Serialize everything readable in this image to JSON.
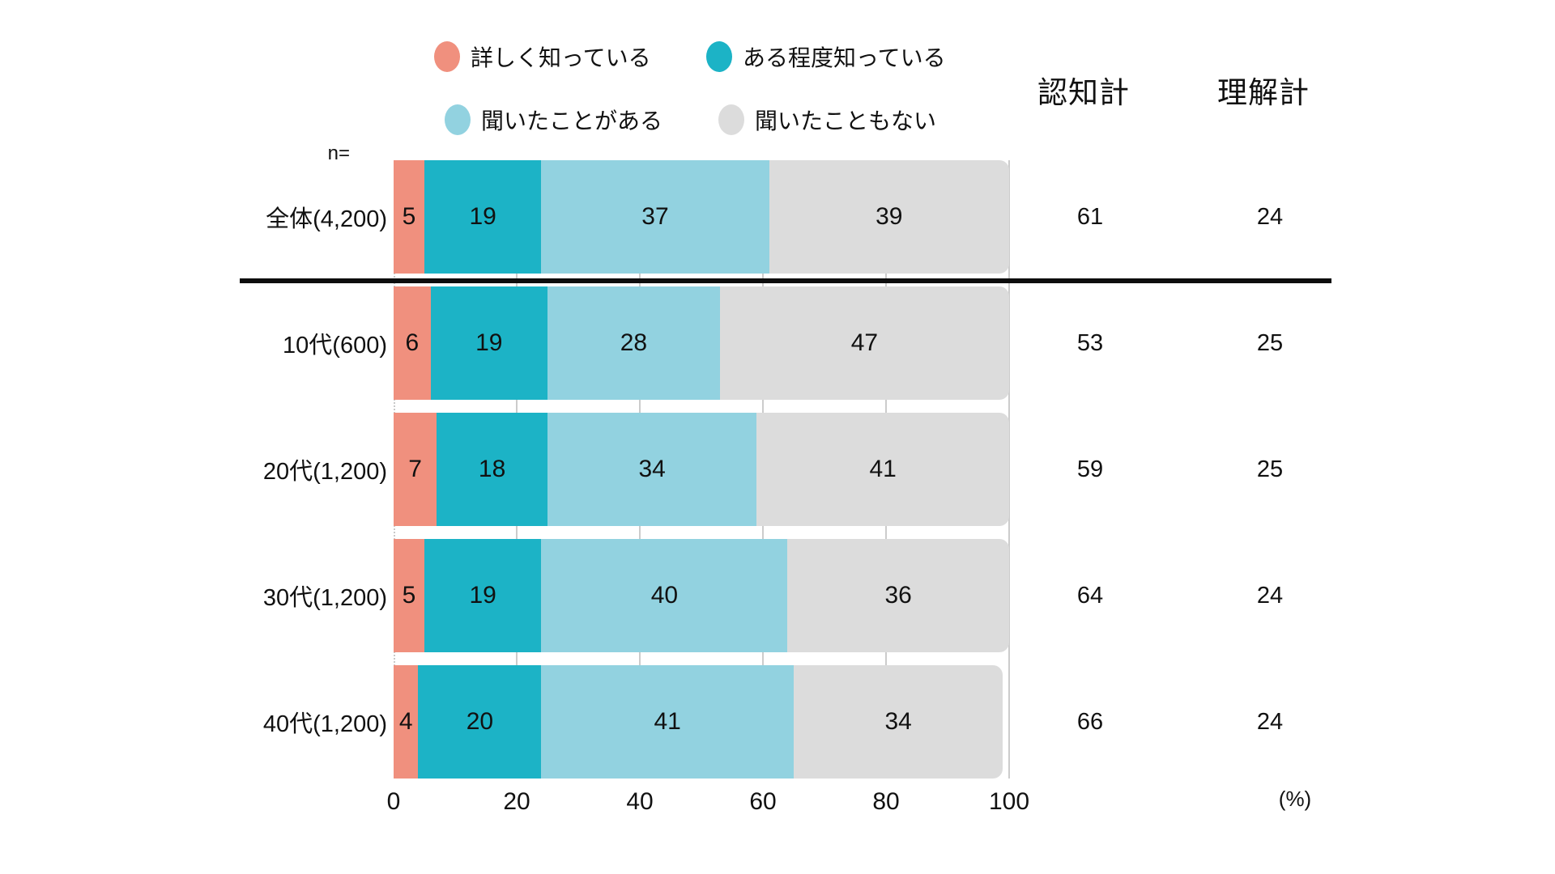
{
  "legend": {
    "items": [
      {
        "label": "詳しく知っている",
        "color": "#F0907E"
      },
      {
        "label": "ある程度知っている",
        "color": "#1CB3C6"
      },
      {
        "label": "聞いたことがある",
        "color": "#92D2E0"
      },
      {
        "label": "聞いたこともない",
        "color": "#DCDCDC"
      }
    ]
  },
  "columns": {
    "awareness": "認知計",
    "understanding": "理解計"
  },
  "n_label": "n=",
  "rows": [
    {
      "label": "全体(4,200)",
      "values": [
        5,
        19,
        37,
        39
      ],
      "awareness": "61",
      "understanding": "24"
    },
    {
      "label": "10代(600)",
      "values": [
        6,
        19,
        28,
        47
      ],
      "awareness": "53",
      "understanding": "25"
    },
    {
      "label": "20代(1,200)",
      "values": [
        7,
        18,
        34,
        41
      ],
      "awareness": "59",
      "understanding": "25"
    },
    {
      "label": "30代(1,200)",
      "values": [
        5,
        19,
        40,
        36
      ],
      "awareness": "64",
      "understanding": "24"
    },
    {
      "label": "40代(1,200)",
      "values": [
        4,
        20,
        41,
        34
      ],
      "awareness": "66",
      "understanding": "24"
    }
  ],
  "axis": {
    "ticks": [
      "0",
      "20",
      "40",
      "60",
      "80",
      "100"
    ],
    "unit": "(%)"
  },
  "chart_data": {
    "type": "bar",
    "orientation": "horizontal",
    "stacked": true,
    "categories": [
      "全体(4,200)",
      "10代(600)",
      "20代(1,200)",
      "30代(1,200)",
      "40代(1,200)"
    ],
    "n_values": [
      4200,
      600,
      1200,
      1200,
      1200
    ],
    "series": [
      {
        "name": "詳しく知っている",
        "color": "#F0907E",
        "values": [
          5,
          6,
          7,
          5,
          4
        ]
      },
      {
        "name": "ある程度知っている",
        "color": "#1CB3C6",
        "values": [
          19,
          19,
          18,
          19,
          20
        ]
      },
      {
        "name": "聞いたことがある",
        "color": "#92D2E0",
        "values": [
          37,
          28,
          34,
          40,
          41
        ]
      },
      {
        "name": "聞いたこともない",
        "color": "#DCDCDC",
        "values": [
          39,
          47,
          41,
          36,
          34
        ]
      }
    ],
    "totals": [
      {
        "name": "認知計",
        "values": [
          61,
          53,
          59,
          64,
          66
        ]
      },
      {
        "name": "理解計",
        "values": [
          24,
          25,
          25,
          24,
          24
        ]
      }
    ],
    "xlim": [
      0,
      100
    ],
    "x_ticks": [
      0,
      20,
      40,
      60,
      80,
      100
    ],
    "x_unit": "(%)",
    "legend_position": "top",
    "grid": "vertical-light",
    "separator_after_first_row": true
  }
}
